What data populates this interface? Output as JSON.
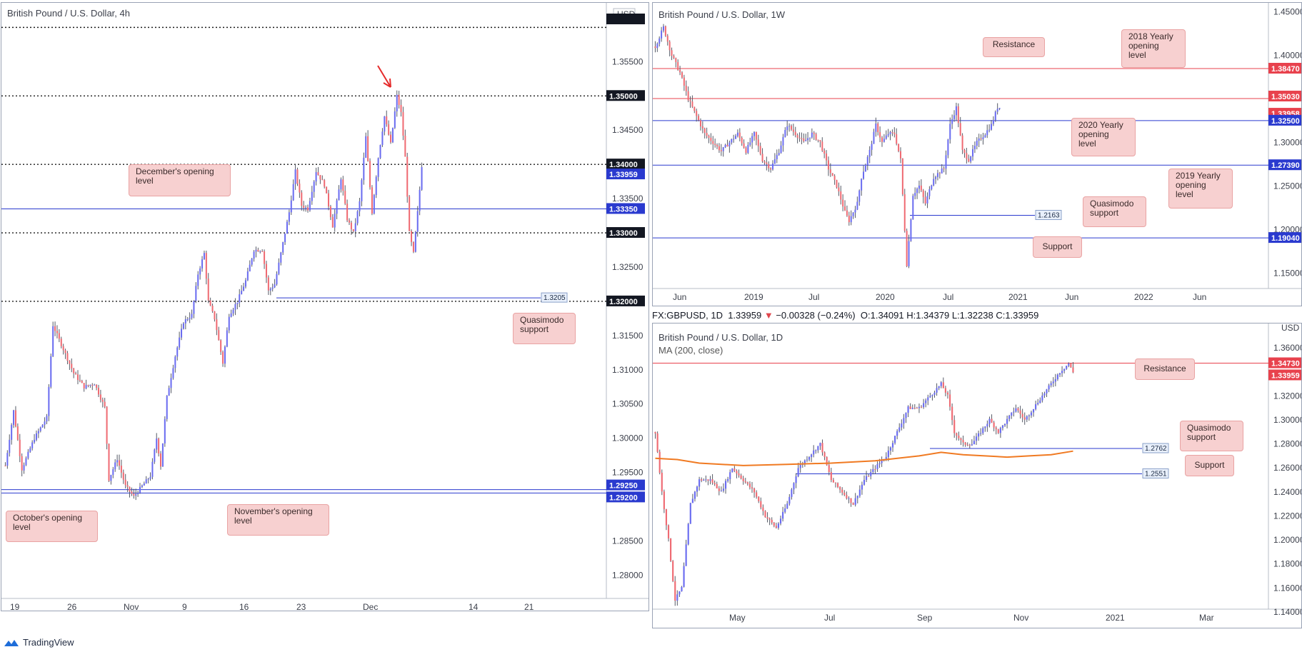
{
  "colors": {
    "bull": "#6a6cf0",
    "bear": "#ef6b73",
    "red_line": "#e8424d",
    "blue_line": "#2a3acf",
    "ma": "#f07a22",
    "callout_bg": "#f7d0d0"
  },
  "left_chart": {
    "title": "British Pound / U.S. Dollar, 4h",
    "currency": "USD",
    "y_ticks": [
      "1.35500",
      "1.34500",
      "1.33500",
      "1.32500",
      "1.31500",
      "1.31000",
      "1.30500",
      "1.30000",
      "1.29500",
      "1.28500",
      "1.28000"
    ],
    "x_ticks": [
      "19",
      "26",
      "Nov",
      "9",
      "16",
      "23",
      "Dec",
      "14",
      "21"
    ],
    "dotted_levels": [
      {
        "value": 1.355,
        "label": "1.35500"
      },
      {
        "value": 1.35,
        "label": "1.35000"
      },
      {
        "value": 1.34,
        "label": "1.34000"
      },
      {
        "value": 1.33,
        "label": "1.33000"
      },
      {
        "value": 1.32,
        "label": "1.32000"
      }
    ],
    "price_tags": [
      {
        "label": "1.35000",
        "kind": "black"
      },
      {
        "label": "1.34000",
        "kind": "black"
      },
      {
        "label": "1.33959",
        "kind": "blue"
      },
      {
        "label": "1.33350",
        "kind": "blue"
      },
      {
        "label": "1.33000",
        "kind": "black"
      },
      {
        "label": "1.32000",
        "kind": "black"
      },
      {
        "label": "1.29250",
        "kind": "blue"
      },
      {
        "label": "1.29200",
        "kind": "blue"
      }
    ],
    "small_tag": "1.3205",
    "callouts": {
      "dec_open": "December's opening level",
      "quasi": "Quasimodo support",
      "oct_open": "October's opening level",
      "nov_open": "November's opening level"
    }
  },
  "weekly_chart": {
    "title": "British Pound / U.S. Dollar, 1W",
    "y_ticks": [
      "1.45000",
      "1.40000",
      "1.30000",
      "1.25000",
      "1.20000",
      "1.15000"
    ],
    "x_ticks": [
      "Jun",
      "2019",
      "Jul",
      "2020",
      "Jul",
      "2021",
      "Jun",
      "2022",
      "Jun"
    ],
    "price_tags": [
      {
        "label": "1.38470",
        "kind": "red"
      },
      {
        "label": "1.35030",
        "kind": "red"
      },
      {
        "label": "1.33958",
        "kind": "red"
      },
      {
        "label": "1.32500",
        "kind": "blue"
      },
      {
        "label": "1.27390",
        "kind": "blue"
      },
      {
        "label": "1.19040",
        "kind": "blue"
      }
    ],
    "small_tag": "1.2163",
    "callouts": {
      "resistance": "Resistance",
      "y2018": "2018 Yearly opening level",
      "y2020": "2020 Yearly opening level",
      "y2019": "2019 Yearly opening level",
      "quasi": "Quasimodo support",
      "support": "Support"
    }
  },
  "daily_chart": {
    "title": "British Pound / U.S. Dollar, 1D",
    "ma_label": "MA (200, close)",
    "currency": "USD",
    "info_bar": {
      "symbol": "FX:GBPUSD, 1D",
      "last": "1.33959",
      "change": "−0.00328 (−0.24%)",
      "o": "O:1.34091",
      "h": "H:1.34379",
      "l": "L:1.32238",
      "c": "C:1.33959"
    },
    "y_ticks": [
      "1.36000",
      "1.32000",
      "1.30000",
      "1.28000",
      "1.26000",
      "1.24000",
      "1.22000",
      "1.20000",
      "1.18000",
      "1.16000",
      "1.14000"
    ],
    "x_ticks": [
      "May",
      "Jul",
      "Sep",
      "Nov",
      "2021",
      "Mar"
    ],
    "price_tags": [
      {
        "label": "1.34730",
        "kind": "red"
      },
      {
        "label": "1.33959",
        "kind": "red"
      }
    ],
    "small_tags": [
      "1.2762",
      "1.2551"
    ],
    "callouts": {
      "resistance": "Resistance",
      "quasi": "Quasimodo support",
      "support": "Support"
    }
  },
  "footer": {
    "brand": "TradingView"
  },
  "chart_data": [
    {
      "type": "candlestick",
      "title": "British Pound / U.S. Dollar, 4h",
      "ylim": [
        1.2765,
        1.3615
      ],
      "levels": [
        1.35,
        1.34,
        1.3335,
        1.33,
        1.3205,
        1.32,
        1.2925,
        1.292
      ],
      "path": [
        [
          0,
          1.296
        ],
        [
          4,
          1.304
        ],
        [
          8,
          1.2955
        ],
        [
          14,
          1.3
        ],
        [
          20,
          1.303
        ],
        [
          23,
          1.3165
        ],
        [
          28,
          1.313
        ],
        [
          33,
          1.3095
        ],
        [
          38,
          1.3075
        ],
        [
          43,
          1.308
        ],
        [
          48,
          1.3045
        ],
        [
          50,
          1.294
        ],
        [
          54,
          1.297
        ],
        [
          58,
          1.293
        ],
        [
          62,
          1.2915
        ],
        [
          66,
          1.293
        ],
        [
          70,
          1.2945
        ],
        [
          73,
          1.3
        ],
        [
          75,
          1.296
        ],
        [
          78,
          1.306
        ],
        [
          82,
          1.312
        ],
        [
          86,
          1.317
        ],
        [
          90,
          1.318
        ],
        [
          93,
          1.324
        ],
        [
          96,
          1.327
        ],
        [
          98,
          1.32
        ],
        [
          101,
          1.3175
        ],
        [
          105,
          1.311
        ],
        [
          108,
          1.318
        ],
        [
          112,
          1.32
        ],
        [
          116,
          1.323
        ],
        [
          120,
          1.3275
        ],
        [
          124,
          1.3275
        ],
        [
          127,
          1.3215
        ],
        [
          130,
          1.3225
        ],
        [
          133,
          1.327
        ],
        [
          137,
          1.333
        ],
        [
          140,
          1.339
        ],
        [
          143,
          1.334
        ],
        [
          146,
          1.3335
        ],
        [
          150,
          1.339
        ],
        [
          154,
          1.337
        ],
        [
          158,
          1.331
        ],
        [
          162,
          1.338
        ],
        [
          165,
          1.332
        ],
        [
          168,
          1.33
        ],
        [
          171,
          1.3345
        ],
        [
          174,
          1.344
        ],
        [
          177,
          1.333
        ],
        [
          180,
          1.341
        ],
        [
          183,
          1.347
        ],
        [
          186,
          1.343
        ],
        [
          189,
          1.35
        ],
        [
          191,
          1.3475
        ],
        [
          193,
          1.341
        ],
        [
          195,
          1.33
        ],
        [
          197,
          1.327
        ],
        [
          199,
          1.333
        ],
        [
          201,
          1.3396
        ]
      ]
    },
    {
      "type": "candlestick",
      "title": "British Pound / U.S. Dollar, 1W",
      "ylim": [
        1.12,
        1.456
      ],
      "levels": [
        1.3847,
        1.3503,
        1.325,
        1.2739,
        1.2163,
        1.1904
      ],
      "path": [
        [
          0,
          1.41
        ],
        [
          4,
          1.432
        ],
        [
          8,
          1.4
        ],
        [
          12,
          1.38
        ],
        [
          16,
          1.35
        ],
        [
          20,
          1.33
        ],
        [
          24,
          1.31
        ],
        [
          28,
          1.3
        ],
        [
          32,
          1.29
        ],
        [
          36,
          1.3
        ],
        [
          40,
          1.31
        ],
        [
          44,
          1.29
        ],
        [
          48,
          1.31
        ],
        [
          52,
          1.28
        ],
        [
          56,
          1.27
        ],
        [
          60,
          1.29
        ],
        [
          64,
          1.32
        ],
        [
          68,
          1.31
        ],
        [
          72,
          1.3
        ],
        [
          76,
          1.31
        ],
        [
          80,
          1.3
        ],
        [
          84,
          1.27
        ],
        [
          88,
          1.25
        ],
        [
          92,
          1.22
        ],
        [
          94,
          1.21
        ],
        [
          98,
          1.23
        ],
        [
          100,
          1.26
        ],
        [
          104,
          1.29
        ],
        [
          107,
          1.32
        ],
        [
          110,
          1.3
        ],
        [
          113,
          1.31
        ],
        [
          116,
          1.31
        ],
        [
          119,
          1.28
        ],
        [
          121,
          1.2
        ],
        [
          122,
          1.16
        ],
        [
          125,
          1.24
        ],
        [
          128,
          1.25
        ],
        [
          131,
          1.23
        ],
        [
          135,
          1.26
        ],
        [
          140,
          1.27
        ],
        [
          143,
          1.32
        ],
        [
          146,
          1.34
        ],
        [
          149,
          1.29
        ],
        [
          152,
          1.28
        ],
        [
          156,
          1.3
        ],
        [
          160,
          1.31
        ],
        [
          163,
          1.32
        ],
        [
          166,
          1.34
        ],
        [
          167,
          1.3396
        ]
      ]
    },
    {
      "type": "candlestick",
      "title": "British Pound / U.S. Dollar, 1D",
      "ylim": [
        1.134,
        1.372
      ],
      "levels": [
        1.3473,
        1.2762,
        1.2551
      ],
      "series": [
        {
          "name": "MA (200, close)"
        }
      ],
      "path": [
        [
          0,
          1.29
        ],
        [
          3,
          1.24
        ],
        [
          6,
          1.2
        ],
        [
          9,
          1.15
        ],
        [
          12,
          1.16
        ],
        [
          16,
          1.23
        ],
        [
          20,
          1.25
        ],
        [
          25,
          1.25
        ],
        [
          30,
          1.24
        ],
        [
          35,
          1.26
        ],
        [
          40,
          1.25
        ],
        [
          45,
          1.24
        ],
        [
          50,
          1.22
        ],
        [
          55,
          1.21
        ],
        [
          60,
          1.23
        ],
        [
          65,
          1.26
        ],
        [
          70,
          1.27
        ],
        [
          75,
          1.28
        ],
        [
          80,
          1.25
        ],
        [
          85,
          1.24
        ],
        [
          90,
          1.23
        ],
        [
          95,
          1.25
        ],
        [
          100,
          1.26
        ],
        [
          105,
          1.27
        ],
        [
          110,
          1.29
        ],
        [
          115,
          1.31
        ],
        [
          120,
          1.31
        ],
        [
          125,
          1.32
        ],
        [
          130,
          1.33
        ],
        [
          133,
          1.32
        ],
        [
          136,
          1.29
        ],
        [
          140,
          1.28
        ],
        [
          144,
          1.28
        ],
        [
          148,
          1.29
        ],
        [
          152,
          1.3
        ],
        [
          156,
          1.29
        ],
        [
          160,
          1.3
        ],
        [
          164,
          1.31
        ],
        [
          168,
          1.3
        ],
        [
          172,
          1.31
        ],
        [
          176,
          1.32
        ],
        [
          180,
          1.33
        ],
        [
          184,
          1.34
        ],
        [
          188,
          1.347
        ],
        [
          190,
          1.3396
        ]
      ],
      "ma": [
        [
          0,
          1.268
        ],
        [
          10,
          1.267
        ],
        [
          20,
          1.264
        ],
        [
          40,
          1.262
        ],
        [
          60,
          1.263
        ],
        [
          80,
          1.264
        ],
        [
          100,
          1.266
        ],
        [
          120,
          1.27
        ],
        [
          130,
          1.273
        ],
        [
          140,
          1.271
        ],
        [
          150,
          1.27
        ],
        [
          160,
          1.269
        ],
        [
          170,
          1.27
        ],
        [
          180,
          1.271
        ],
        [
          190,
          1.274
        ]
      ]
    }
  ]
}
